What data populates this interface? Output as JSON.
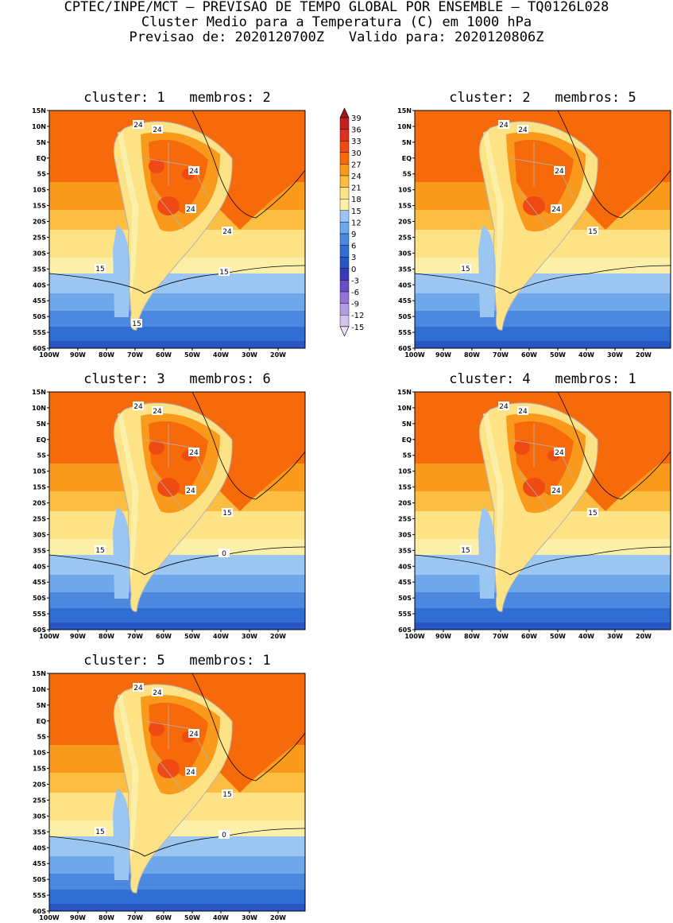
{
  "header": {
    "line1": "CPTEC/INPE/MCT – PREVISAO DE TEMPO GLOBAL POR ENSEMBLE – TQ0126L028",
    "line2": "Cluster Medio para a Temperatura (C) em 1000 hPa",
    "line3": "Previsao de: 2020120700Z   Valido para: 2020120806Z"
  },
  "axes": {
    "lat_labels": [
      "15N",
      "10N",
      "5N",
      "EQ",
      "5S",
      "10S",
      "15S",
      "20S",
      "25S",
      "30S",
      "35S",
      "40S",
      "45S",
      "50S",
      "55S",
      "60S"
    ],
    "lon_labels": [
      "100W",
      "90W",
      "80W",
      "70W",
      "60W",
      "50W",
      "40W",
      "30W",
      "20W"
    ]
  },
  "legend": {
    "levels": [
      "39",
      "36",
      "33",
      "30",
      "27",
      "24",
      "21",
      "18",
      "15",
      "12",
      "9",
      "6",
      "3",
      "0",
      "-3",
      "-6",
      "-9",
      "-12",
      "-15"
    ],
    "colors": [
      "#a01818",
      "#c02020",
      "#dc3020",
      "#f04a14",
      "#f76a0c",
      "#f99a1c",
      "#fbbd42",
      "#fde286",
      "#fcf0a8",
      "#9cc6f2",
      "#6ea8ea",
      "#4c88e0",
      "#306ed4",
      "#2a56c4",
      "#3b3ab4",
      "#6a4ec8",
      "#9474d6",
      "#b49ce2",
      "#d2c2ee",
      "#ebe2f7"
    ]
  },
  "panels": [
    {
      "title": "cluster: 1   membros: 2",
      "labels": [
        "24",
        "24",
        "24",
        "24",
        "24",
        "15",
        "15",
        "15"
      ]
    },
    {
      "title": "cluster: 2   membros: 5",
      "labels": [
        "24",
        "24",
        "24",
        "24",
        "15",
        "15"
      ]
    },
    {
      "title": "cluster: 3   membros: 6",
      "labels": [
        "24",
        "24",
        "24",
        "24",
        "15",
        "15",
        "0"
      ]
    },
    {
      "title": "cluster: 4   membros: 1",
      "labels": [
        "24",
        "24",
        "24",
        "24",
        "15",
        "15"
      ]
    },
    {
      "title": "cluster: 5   membros: 1",
      "labels": [
        "24",
        "24",
        "24",
        "24",
        "15",
        "15",
        "0"
      ]
    }
  ]
}
